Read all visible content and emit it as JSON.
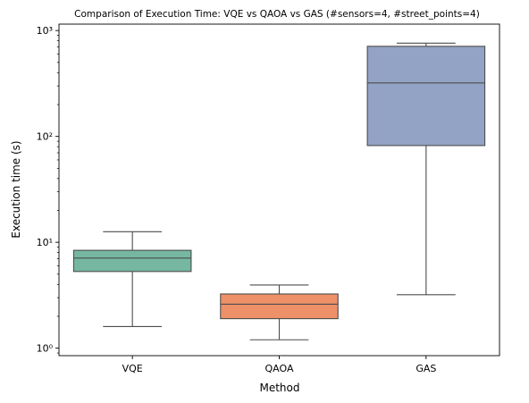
{
  "chart_data": {
    "type": "box",
    "title": "Comparison of Execution Time: VQE vs QAOA vs GAS (#sensors=4, #street_points=4)",
    "xlabel": "Method",
    "ylabel": "Execution time (s)",
    "yscale": "log",
    "ylim": [
      0.85,
      1150
    ],
    "categories": [
      "VQE",
      "QAOA",
      "GAS"
    ],
    "boxes": [
      {
        "name": "VQE",
        "whislo": 1.6,
        "q1": 5.3,
        "med": 7.1,
        "q3": 8.4,
        "whishi": 12.6,
        "color": "#76b7a1"
      },
      {
        "name": "QAOA",
        "whislo": 1.2,
        "q1": 1.9,
        "med": 2.6,
        "q3": 3.25,
        "whishi": 3.95,
        "color": "#ee9068"
      },
      {
        "name": "GAS",
        "whislo": 3.2,
        "q1": 82,
        "med": 320,
        "q3": 710,
        "whishi": 760,
        "color": "#93a3c5"
      }
    ],
    "yticks_major": [
      {
        "value": 1,
        "label": "10⁰"
      },
      {
        "value": 10,
        "label": "10¹"
      },
      {
        "value": 100,
        "label": "10²"
      },
      {
        "value": 1000,
        "label": "10³"
      }
    ],
    "grid": false,
    "legend": "none"
  }
}
